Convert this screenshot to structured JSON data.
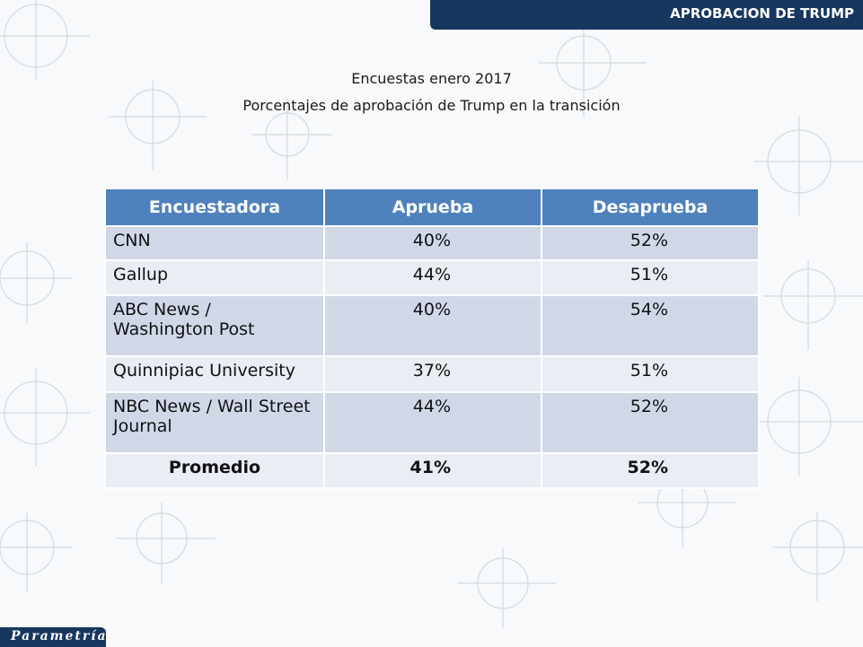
{
  "header": {
    "banner_title": "APROBACION DE TRUMP"
  },
  "titles": {
    "line1": "Encuestas enero 2017",
    "line2": "Porcentajes de aprobación de Trump en la transición"
  },
  "table": {
    "headers": [
      "Encuestadora",
      "Aprueba",
      "Desaprueba"
    ],
    "rows": [
      {
        "name": "CNN",
        "aprueba": "40%",
        "desaprueba": "52%"
      },
      {
        "name": "Gallup",
        "aprueba": "44%",
        "desaprueba": "51%"
      },
      {
        "name": "ABC News / Washington Post",
        "aprueba": "40%",
        "desaprueba": "54%"
      },
      {
        "name": "Quinnipiac University",
        "aprueba": "37%",
        "desaprueba": "51%"
      },
      {
        "name": "NBC News / Wall Street Journal",
        "aprueba": "44%",
        "desaprueba": "52%"
      }
    ],
    "summary": {
      "name": "Promedio",
      "aprueba": "41%",
      "desaprueba": "52%"
    }
  },
  "footer": {
    "logo_text": "Parametría"
  },
  "colors": {
    "brand": "#17375e",
    "header_fill": "#4f81bd",
    "row_dark": "#d0d8e8",
    "row_light": "#e9edf4"
  }
}
